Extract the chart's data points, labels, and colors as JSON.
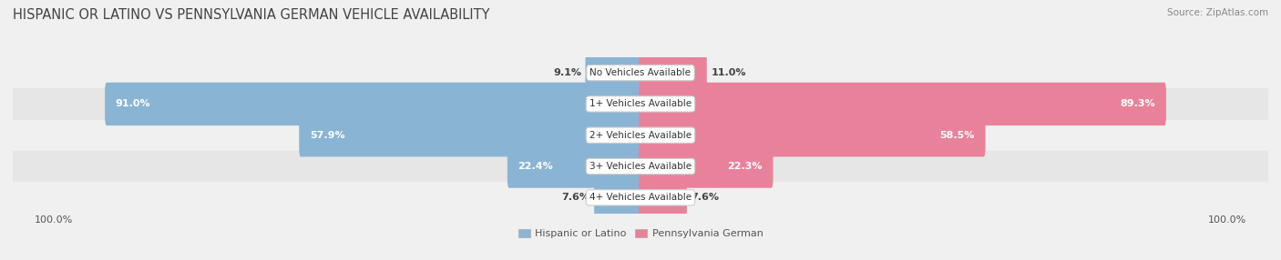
{
  "title": "HISPANIC OR LATINO VS PENNSYLVANIA GERMAN VEHICLE AVAILABILITY",
  "source": "Source: ZipAtlas.com",
  "categories": [
    "No Vehicles Available",
    "1+ Vehicles Available",
    "2+ Vehicles Available",
    "3+ Vehicles Available",
    "4+ Vehicles Available"
  ],
  "hispanic_values": [
    9.1,
    91.0,
    57.9,
    22.4,
    7.6
  ],
  "pennsylvania_values": [
    11.0,
    89.3,
    58.5,
    22.3,
    7.6
  ],
  "hispanic_color": "#8ab4d4",
  "pennsylvania_color": "#e8829a",
  "legend_hispanic": "Hispanic or Latino",
  "legend_pennsylvania": "Pennsylvania German",
  "row_colors": [
    "#f0f0f0",
    "#e6e6e6"
  ],
  "max_value": 100.0,
  "bar_height": 0.78,
  "title_fontsize": 10.5,
  "label_fontsize": 8.0,
  "tick_fontsize": 8.0,
  "value_threshold": 15
}
